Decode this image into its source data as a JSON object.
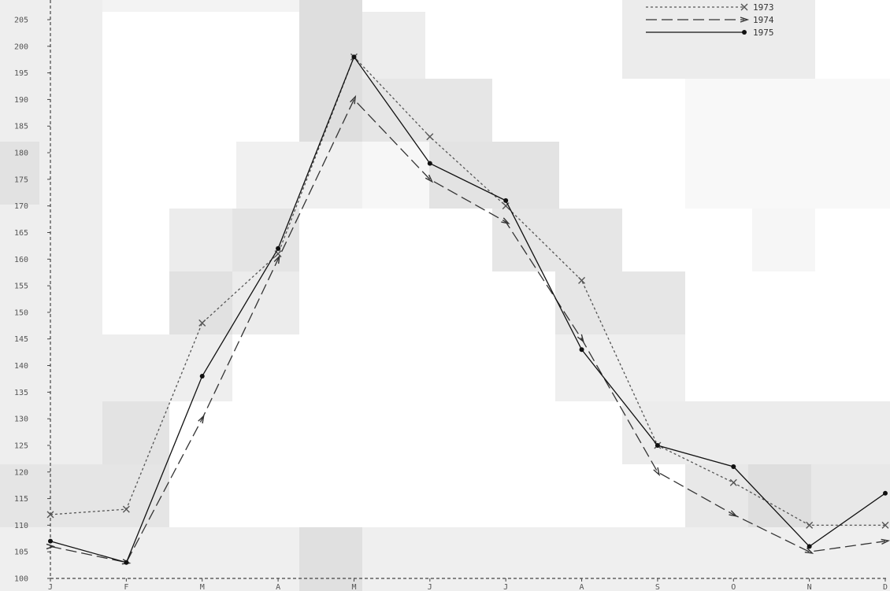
{
  "chart_data": {
    "type": "line",
    "title": "",
    "xlabel": "",
    "ylabel": "",
    "categories": [
      "J",
      "F",
      "M",
      "A",
      "M",
      "J",
      "J",
      "A",
      "S",
      "O",
      "N",
      "D"
    ],
    "ylim": [
      100,
      205
    ],
    "yticks": [
      100,
      105,
      110,
      115,
      120,
      125,
      130,
      135,
      140,
      145,
      150,
      155,
      160,
      165,
      170,
      175,
      180,
      185,
      190,
      195,
      200,
      205
    ],
    "grid": false,
    "legend_position": "top-right",
    "background_blocks": "pale grey",
    "series": [
      {
        "name": "1973",
        "style": "dotted",
        "marker": "x",
        "color": "#555555",
        "values": [
          112,
          113,
          148,
          161,
          198,
          183,
          170,
          156,
          125,
          118,
          110,
          110
        ]
      },
      {
        "name": "1974",
        "style": "dashed",
        "marker": "arrow",
        "color": "#333333",
        "values": [
          106,
          103,
          130,
          160,
          190,
          175,
          167,
          145,
          120,
          112,
          105,
          107
        ]
      },
      {
        "name": "1975",
        "style": "solid",
        "marker": "dot",
        "color": "#111111",
        "values": [
          107,
          103,
          138,
          162,
          198,
          178,
          171,
          143,
          125,
          121,
          106,
          116
        ]
      }
    ]
  }
}
